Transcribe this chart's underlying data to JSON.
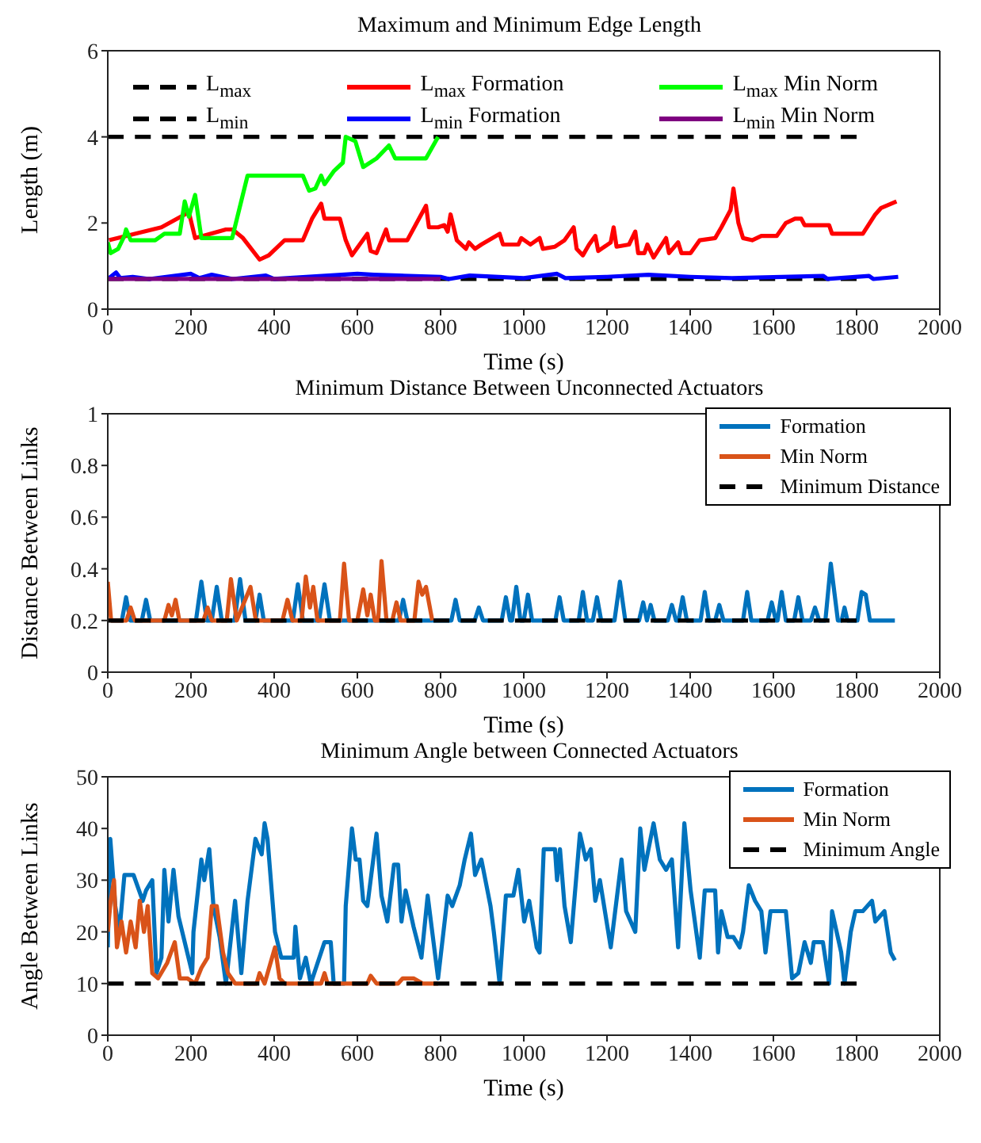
{
  "chart_data": [
    {
      "type": "line",
      "title": "Maximum and Minimum Edge Length",
      "xlabel": "Time (s)",
      "ylabel": "Length (m)",
      "xlim": [
        0,
        2000
      ],
      "xticks": [
        0,
        200,
        400,
        600,
        800,
        1000,
        1200,
        1400,
        1600,
        1800,
        2000
      ],
      "ylim": [
        0,
        6
      ],
      "yticks": [
        0,
        2,
        4,
        6
      ],
      "legend": "top",
      "series": [
        {
          "name": "L$_{max}$",
          "color": "#000000",
          "line_style": "dashed",
          "x": [
            0,
            1800
          ],
          "values": [
            4,
            4
          ]
        },
        {
          "name": "L$_{min}$",
          "color": "#000000",
          "line_style": "dashed",
          "x": [
            0,
            1800
          ],
          "values": [
            0.7,
            0.7
          ]
        },
        {
          "name": "L$_{max}$ Formation",
          "color": "#ff0000",
          "x": [
            3,
            129,
            195,
            210,
            284,
            300,
            325,
            365,
            387,
            425,
            469,
            491,
            513,
            521,
            558,
            572,
            587,
            624,
            632,
            646,
            669,
            676,
            720,
            765,
            772,
            794,
            809,
            817,
            824,
            839,
            861,
            868,
            883,
            898,
            942,
            950,
            987,
            994,
            1016,
            1038,
            1046,
            1075,
            1098,
            1120,
            1127,
            1142,
            1157,
            1172,
            1179,
            1209,
            1216,
            1223,
            1253,
            1268,
            1275,
            1290,
            1297,
            1312,
            1342,
            1349,
            1371,
            1379,
            1401,
            1423,
            1460,
            1475,
            1497,
            1504,
            1516,
            1527,
            1549,
            1571,
            1608,
            1630,
            1652,
            1667,
            1675,
            1734,
            1741,
            1815,
            1845,
            1859,
            1896
          ],
          "values": [
            1.6,
            1.9,
            2.25,
            1.65,
            1.85,
            1.85,
            1.65,
            1.15,
            1.25,
            1.6,
            1.6,
            2.1,
            2.45,
            2.1,
            2.1,
            1.6,
            1.25,
            1.75,
            1.35,
            1.3,
            1.85,
            1.6,
            1.6,
            2.4,
            1.9,
            1.9,
            1.95,
            1.8,
            2.2,
            1.6,
            1.4,
            1.55,
            1.4,
            1.5,
            1.75,
            1.5,
            1.5,
            1.65,
            1.5,
            1.65,
            1.4,
            1.45,
            1.6,
            1.9,
            1.4,
            1.25,
            1.5,
            1.7,
            1.35,
            1.55,
            1.9,
            1.45,
            1.5,
            1.8,
            1.3,
            1.3,
            1.5,
            1.2,
            1.65,
            1.3,
            1.55,
            1.3,
            1.3,
            1.6,
            1.65,
            1.9,
            2.3,
            2.8,
            2.0,
            1.65,
            1.6,
            1.7,
            1.7,
            2.0,
            2.1,
            2.1,
            1.95,
            1.95,
            1.75,
            1.75,
            2.2,
            2.35,
            2.5
          ]
        },
        {
          "name": "L$_{min}$ Formation",
          "color": "#0000ff",
          "x": [
            0,
            20,
            30,
            60,
            100,
            200,
            220,
            250,
            300,
            380,
            400,
            600,
            640,
            700,
            800,
            820,
            870,
            1000,
            1080,
            1100,
            1200,
            1300,
            1400,
            1500,
            1720,
            1730,
            1830,
            1840,
            1900
          ],
          "values": [
            0.7,
            0.85,
            0.72,
            0.75,
            0.7,
            0.82,
            0.72,
            0.8,
            0.7,
            0.78,
            0.7,
            0.82,
            0.8,
            0.78,
            0.75,
            0.7,
            0.78,
            0.72,
            0.82,
            0.72,
            0.75,
            0.8,
            0.75,
            0.72,
            0.77,
            0.7,
            0.77,
            0.7,
            0.75
          ]
        },
        {
          "name": "L$_{max}$ Min Norm",
          "color": "#00ff00",
          "x": [
            0,
            7,
            25,
            40,
            44,
            55,
            114,
            136,
            173,
            185,
            195,
            210,
            225,
            299,
            336,
            469,
            484,
            499,
            513,
            521,
            543,
            565,
            572,
            595,
            614,
            646,
            676,
            691,
            765,
            794
          ],
          "values": [
            1.55,
            1.3,
            1.4,
            1.7,
            1.85,
            1.6,
            1.6,
            1.75,
            1.75,
            2.5,
            2.15,
            2.65,
            1.65,
            1.65,
            3.1,
            3.1,
            2.75,
            2.8,
            3.1,
            2.9,
            3.2,
            3.4,
            4.0,
            3.9,
            3.3,
            3.5,
            3.8,
            3.5,
            3.5,
            4.0
          ]
        },
        {
          "name": "L$_{min}$ Min Norm",
          "color": "#7e0080",
          "x": [
            0,
            800
          ],
          "values": [
            0.7,
            0.7
          ]
        }
      ]
    },
    {
      "type": "line",
      "title": "Minimum Distance Between Unconnected Actuators",
      "xlabel": "Time (s)",
      "ylabel": "Distance Between Links",
      "xlim": [
        0,
        2000
      ],
      "xticks": [
        0,
        200,
        400,
        600,
        800,
        1000,
        1200,
        1400,
        1600,
        1800,
        2000
      ],
      "ylim": [
        0,
        1
      ],
      "yticks": [
        0,
        0.2,
        0.4,
        0.6,
        0.8,
        1
      ],
      "legend": "top right",
      "series": [
        {
          "name": "Formation",
          "color": "#0072bd",
          "x": [
            8,
            34,
            44,
            54,
            82,
            92,
            102,
            212,
            225,
            238,
            250,
            262,
            274,
            305,
            318,
            331,
            355,
            365,
            375,
            445,
            457,
            469,
            508,
            521,
            534,
            700,
            710,
            720,
            826,
            836,
            846,
            882,
            892,
            902,
            947,
            957,
            967,
            972,
            982,
            992,
            1000,
            1010,
            1020,
            1076,
            1086,
            1096,
            1132,
            1142,
            1152,
            1166,
            1176,
            1186,
            1218,
            1231,
            1244,
            1277,
            1287,
            1296,
            1305,
            1314,
            1346,
            1356,
            1366,
            1372,
            1382,
            1392,
            1425,
            1435,
            1445,
            1460,
            1470,
            1480,
            1527,
            1537,
            1547,
            1586,
            1596,
            1606,
            1610,
            1620,
            1630,
            1650,
            1660,
            1670,
            1690,
            1700,
            1710,
            1725,
            1738,
            1755,
            1764,
            1771,
            1778,
            1802,
            1812,
            1822,
            1832,
            1892
          ],
          "values": [
            0.2,
            0.2,
            0.29,
            0.2,
            0.2,
            0.28,
            0.2,
            0.2,
            0.35,
            0.2,
            0.2,
            0.33,
            0.2,
            0.2,
            0.36,
            0.2,
            0.2,
            0.3,
            0.2,
            0.2,
            0.34,
            0.2,
            0.2,
            0.34,
            0.2,
            0.2,
            0.28,
            0.2,
            0.2,
            0.28,
            0.2,
            0.2,
            0.25,
            0.2,
            0.2,
            0.29,
            0.2,
            0.2,
            0.33,
            0.2,
            0.2,
            0.3,
            0.2,
            0.2,
            0.29,
            0.2,
            0.2,
            0.31,
            0.2,
            0.2,
            0.29,
            0.2,
            0.2,
            0.35,
            0.2,
            0.2,
            0.27,
            0.2,
            0.26,
            0.2,
            0.2,
            0.26,
            0.2,
            0.2,
            0.29,
            0.2,
            0.2,
            0.31,
            0.2,
            0.2,
            0.26,
            0.2,
            0.2,
            0.31,
            0.2,
            0.2,
            0.27,
            0.2,
            0.2,
            0.31,
            0.2,
            0.2,
            0.29,
            0.2,
            0.2,
            0.25,
            0.2,
            0.2,
            0.42,
            0.2,
            0.2,
            0.25,
            0.2,
            0.2,
            0.31,
            0.3,
            0.2,
            0.2
          ]
        },
        {
          "name": "Min Norm",
          "color": "#d95319",
          "x": [
            0,
            8,
            45,
            55,
            65,
            136,
            146,
            154,
            163,
            172,
            230,
            240,
            250,
            286,
            296,
            310,
            343,
            356,
            420,
            432,
            444,
            466,
            476,
            486,
            494,
            504,
            558,
            568,
            580,
            600,
            614,
            624,
            632,
            642,
            650,
            658,
            670,
            684,
            694,
            704,
            737,
            747,
            756,
            765,
            780
          ],
          "values": [
            0.35,
            0.2,
            0.2,
            0.25,
            0.2,
            0.2,
            0.26,
            0.22,
            0.28,
            0.2,
            0.2,
            0.25,
            0.2,
            0.2,
            0.36,
            0.2,
            0.33,
            0.2,
            0.2,
            0.28,
            0.2,
            0.2,
            0.37,
            0.25,
            0.33,
            0.2,
            0.2,
            0.42,
            0.2,
            0.2,
            0.32,
            0.22,
            0.3,
            0.2,
            0.2,
            0.43,
            0.2,
            0.2,
            0.27,
            0.2,
            0.2,
            0.35,
            0.3,
            0.33,
            0.2
          ]
        },
        {
          "name": "Minimum Distance",
          "color": "#000000",
          "line_style": "dashed",
          "x": [
            0,
            1800
          ],
          "values": [
            0.2,
            0.2
          ]
        }
      ]
    },
    {
      "type": "line",
      "title": "Minimum Angle between Connected Actuators",
      "xlabel": "Time (s)",
      "ylabel": "Angle Between Links",
      "xlim": [
        0,
        2000
      ],
      "xticks": [
        0,
        200,
        400,
        600,
        800,
        1000,
        1200,
        1400,
        1600,
        1800,
        2000
      ],
      "ylim": [
        0,
        50
      ],
      "yticks": [
        0,
        10,
        20,
        30,
        40,
        50
      ],
      "legend": "top right",
      "series": [
        {
          "name": "Formation",
          "color": "#0072bd",
          "x": [
            0,
            6,
            18,
            28,
            40,
            62,
            84,
            92,
            107,
            117,
            129,
            136,
            146,
            158,
            170,
            188,
            203,
            206,
            225,
            232,
            244,
            254,
            269,
            284,
            306,
            321,
            336,
            355,
            370,
            377,
            384,
            402,
            417,
            447,
            451,
            462,
            476,
            488,
            521,
            536,
            543,
            568,
            572,
            587,
            596,
            605,
            614,
            624,
            646,
            658,
            672,
            688,
            698,
            706,
            716,
            735,
            754,
            769,
            794,
            817,
            828,
            846,
            858,
            873,
            883,
            898,
            920,
            928,
            942,
            957,
            975,
            987,
            1001,
            1013,
            1031,
            1038,
            1048,
            1075,
            1080,
            1087,
            1098,
            1113,
            1135,
            1149,
            1161,
            1172,
            1183,
            1209,
            1235,
            1246,
            1268,
            1280,
            1290,
            1312,
            1327,
            1342,
            1356,
            1371,
            1386,
            1401,
            1423,
            1435,
            1460,
            1467,
            1475,
            1490,
            1504,
            1519,
            1527,
            1541,
            1556,
            1571,
            1581,
            1593,
            1630,
            1645,
            1660,
            1675,
            1690,
            1697,
            1719,
            1734,
            1741,
            1763,
            1771,
            1786,
            1797,
            1815,
            1837,
            1845,
            1867,
            1882,
            1892
          ],
          "values": [
            17,
            38,
            25,
            20,
            31,
            31,
            26,
            28,
            30,
            12,
            15,
            32,
            22,
            32,
            23,
            17,
            12,
            20,
            34,
            30,
            36,
            25,
            19,
            10,
            26,
            12,
            26,
            38,
            35,
            41,
            38,
            20,
            15,
            15,
            21,
            11,
            15,
            10,
            18,
            18,
            10,
            10,
            25,
            40,
            34,
            34,
            26,
            25,
            39,
            27,
            22,
            33,
            33,
            22,
            28,
            21,
            15,
            27,
            11,
            27,
            25,
            29,
            34,
            39,
            31,
            34,
            25,
            20,
            10,
            27,
            27,
            32,
            22,
            26,
            17,
            16,
            36,
            36,
            30,
            36,
            25,
            18,
            39,
            34,
            36,
            26,
            30,
            17,
            34,
            24,
            20,
            40,
            32,
            41,
            34,
            32,
            34,
            17,
            41,
            28,
            15,
            28,
            28,
            16,
            24,
            19,
            19,
            17,
            20,
            29,
            26,
            24,
            16,
            24,
            24,
            11,
            12,
            18,
            14,
            18,
            18,
            10,
            24,
            16,
            10,
            20,
            24,
            24,
            26,
            22,
            24,
            16,
            14.5
          ]
        },
        {
          "name": "Min Norm",
          "color": "#d95319",
          "x": [
            0,
            7,
            15,
            22,
            33,
            44,
            55,
            67,
            77,
            87,
            96,
            107,
            121,
            143,
            161,
            173,
            191,
            210,
            225,
            240,
            250,
            262,
            277,
            289,
            306,
            358,
            365,
            377,
            402,
            413,
            425,
            513,
            521,
            528,
            624,
            632,
            646,
            698,
            709,
            735,
            757,
            794
          ],
          "values": [
            20,
            26,
            30,
            17,
            22,
            16,
            22,
            17,
            26,
            20,
            25,
            12,
            11,
            14,
            18,
            11,
            11,
            10,
            13,
            15,
            25,
            25,
            16,
            12,
            10,
            10,
            12,
            10,
            17,
            11,
            10,
            10,
            12,
            10,
            10,
            11.5,
            10,
            10,
            11,
            11,
            10,
            10
          ]
        },
        {
          "name": "Minimum Angle",
          "color": "#000000",
          "line_style": "dashed",
          "x": [
            0,
            1800
          ],
          "values": [
            10,
            10
          ]
        }
      ]
    }
  ]
}
